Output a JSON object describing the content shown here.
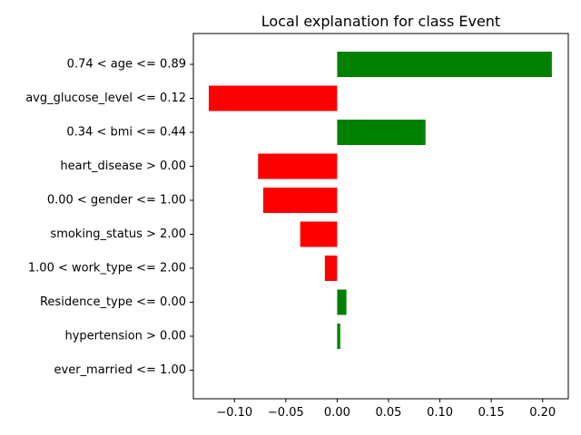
{
  "chart_data": {
    "type": "bar",
    "orientation": "horizontal",
    "title": "Local explanation for class Event",
    "xlabel": "",
    "ylabel": "",
    "xlim": [
      -0.14,
      0.225
    ],
    "xticks": [
      -0.1,
      -0.05,
      0.0,
      0.05,
      0.1,
      0.15,
      0.2
    ],
    "xtick_labels": [
      "−0.10",
      "−0.05",
      "0.00",
      "0.05",
      "0.10",
      "0.15",
      "0.20"
    ],
    "grid": false,
    "legend": "none",
    "colors": {
      "positive": "#008000",
      "negative": "#ff0000"
    },
    "categories": [
      "0.74 < age <= 0.89",
      "avg_glucose_level <= 0.12",
      "0.34 < bmi <= 0.44",
      "heart_disease > 0.00",
      "0.00 < gender <= 1.00",
      "smoking_status > 2.00",
      "1.00 < work_type <= 2.00",
      "Residence_type <= 0.00",
      "hypertension > 0.00",
      "ever_married <= 1.00"
    ],
    "values": [
      0.209,
      -0.125,
      0.086,
      -0.077,
      -0.072,
      -0.036,
      -0.012,
      0.009,
      0.003,
      0.0
    ]
  }
}
